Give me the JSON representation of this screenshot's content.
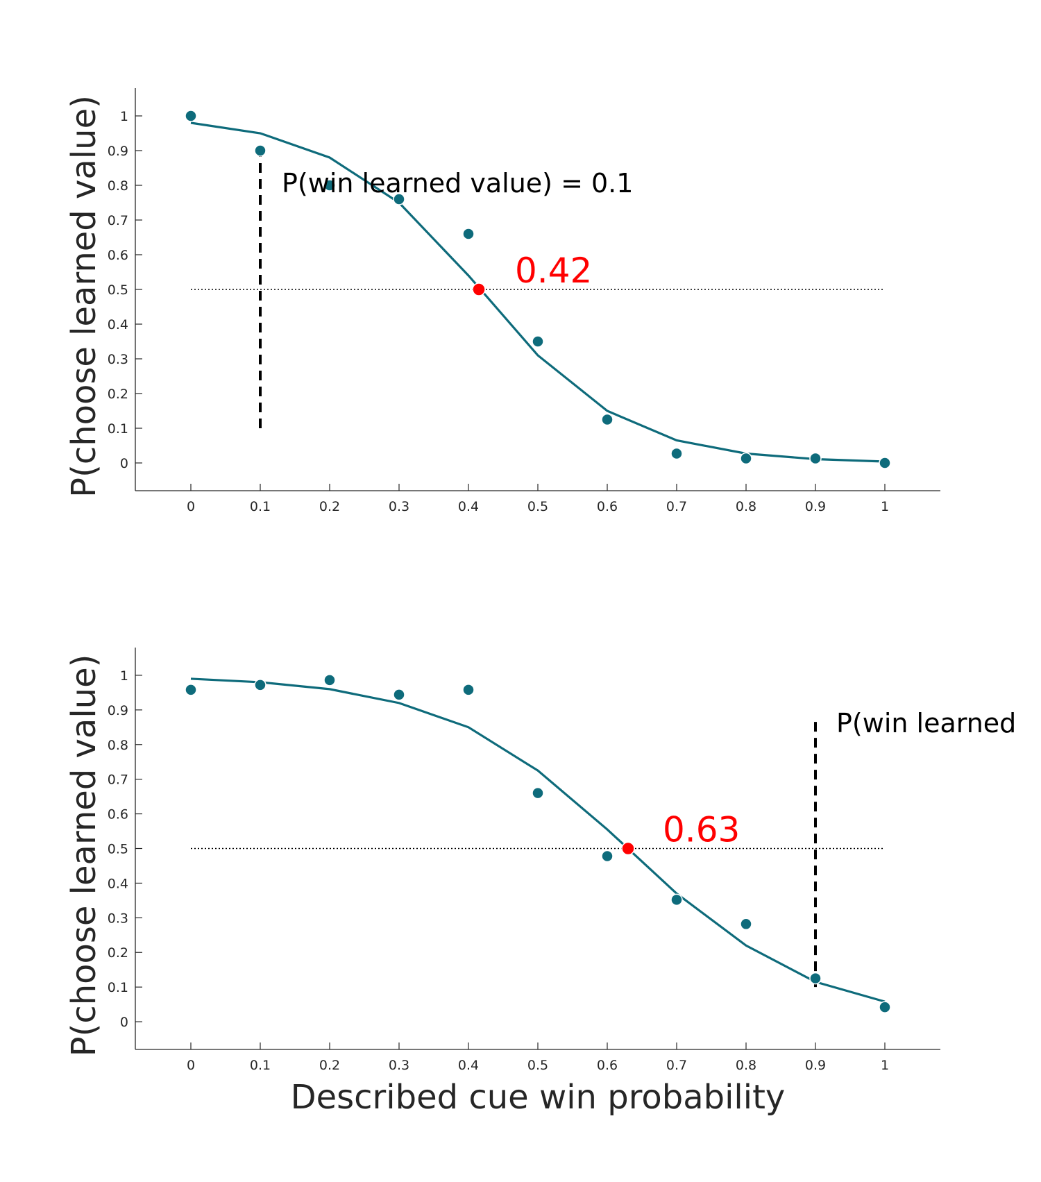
{
  "colors": {
    "series": "#0e6b7b",
    "threshold_point": "#ff0000",
    "axis": "#262626",
    "reference": "#000000"
  },
  "chart_data": [
    {
      "type": "scatter",
      "ylabel": "P(choose learned value)",
      "xlim": [
        -0.08,
        1.08
      ],
      "ylim": [
        -0.08,
        1.08
      ],
      "xticks": [
        "0",
        "0.1",
        "0.2",
        "0.3",
        "0.4",
        "0.5",
        "0.6",
        "0.7",
        "0.8",
        "0.9",
        "1"
      ],
      "yticks": [
        "0",
        "0.1",
        "0.2",
        "0.3",
        "0.4",
        "0.5",
        "0.6",
        "0.7",
        "0.8",
        "0.9",
        "1"
      ],
      "grid": false,
      "points": {
        "x": [
          0,
          0.1,
          0.2,
          0.3,
          0.4,
          0.5,
          0.6,
          0.7,
          0.8,
          0.9,
          1.0
        ],
        "y": [
          1.0,
          0.9,
          0.8,
          0.76,
          0.66,
          0.35,
          0.125,
          0.027,
          0.013,
          0.013,
          0.0
        ]
      },
      "fit": {
        "x": [
          0,
          0.1,
          0.2,
          0.3,
          0.4,
          0.5,
          0.6,
          0.7,
          0.8,
          0.9,
          1.0
        ],
        "y": [
          0.98,
          0.95,
          0.88,
          0.75,
          0.54,
          0.31,
          0.15,
          0.065,
          0.027,
          0.011,
          0.004
        ]
      },
      "reference_y": 0.5,
      "threshold": {
        "x": 0.415,
        "y": 0.5,
        "label": "0.42"
      },
      "learned_value": {
        "x": 0.1,
        "y_from": 0.1,
        "y_to": 0.9,
        "label": "P(win learned value) = 0.1"
      }
    },
    {
      "type": "scatter",
      "ylabel": "P(choose learned value)",
      "xlabel": "Described cue win probability",
      "xlim": [
        -0.08,
        1.08
      ],
      "ylim": [
        -0.08,
        1.08
      ],
      "xticks": [
        "0",
        "0.1",
        "0.2",
        "0.3",
        "0.4",
        "0.5",
        "0.6",
        "0.7",
        "0.8",
        "0.9",
        "1"
      ],
      "yticks": [
        "0",
        "0.1",
        "0.2",
        "0.3",
        "0.4",
        "0.5",
        "0.6",
        "0.7",
        "0.8",
        "0.9",
        "1"
      ],
      "grid": false,
      "points": {
        "x": [
          0,
          0.1,
          0.2,
          0.3,
          0.4,
          0.5,
          0.6,
          0.7,
          0.8,
          0.9,
          1.0
        ],
        "y": [
          0.958,
          0.972,
          0.986,
          0.944,
          0.958,
          0.66,
          0.478,
          0.352,
          0.282,
          0.125,
          0.042
        ]
      },
      "fit": {
        "x": [
          0,
          0.1,
          0.2,
          0.3,
          0.4,
          0.5,
          0.6,
          0.7,
          0.8,
          0.9,
          1.0
        ],
        "y": [
          0.99,
          0.98,
          0.96,
          0.92,
          0.85,
          0.725,
          0.555,
          0.37,
          0.22,
          0.115,
          0.058
        ]
      },
      "reference_y": 0.5,
      "threshold": {
        "x": 0.63,
        "y": 0.5,
        "label": "0.63"
      },
      "learned_value": {
        "x": 0.9,
        "y_from": 0.1,
        "y_to": 0.88,
        "label": "P(win learned"
      }
    }
  ]
}
